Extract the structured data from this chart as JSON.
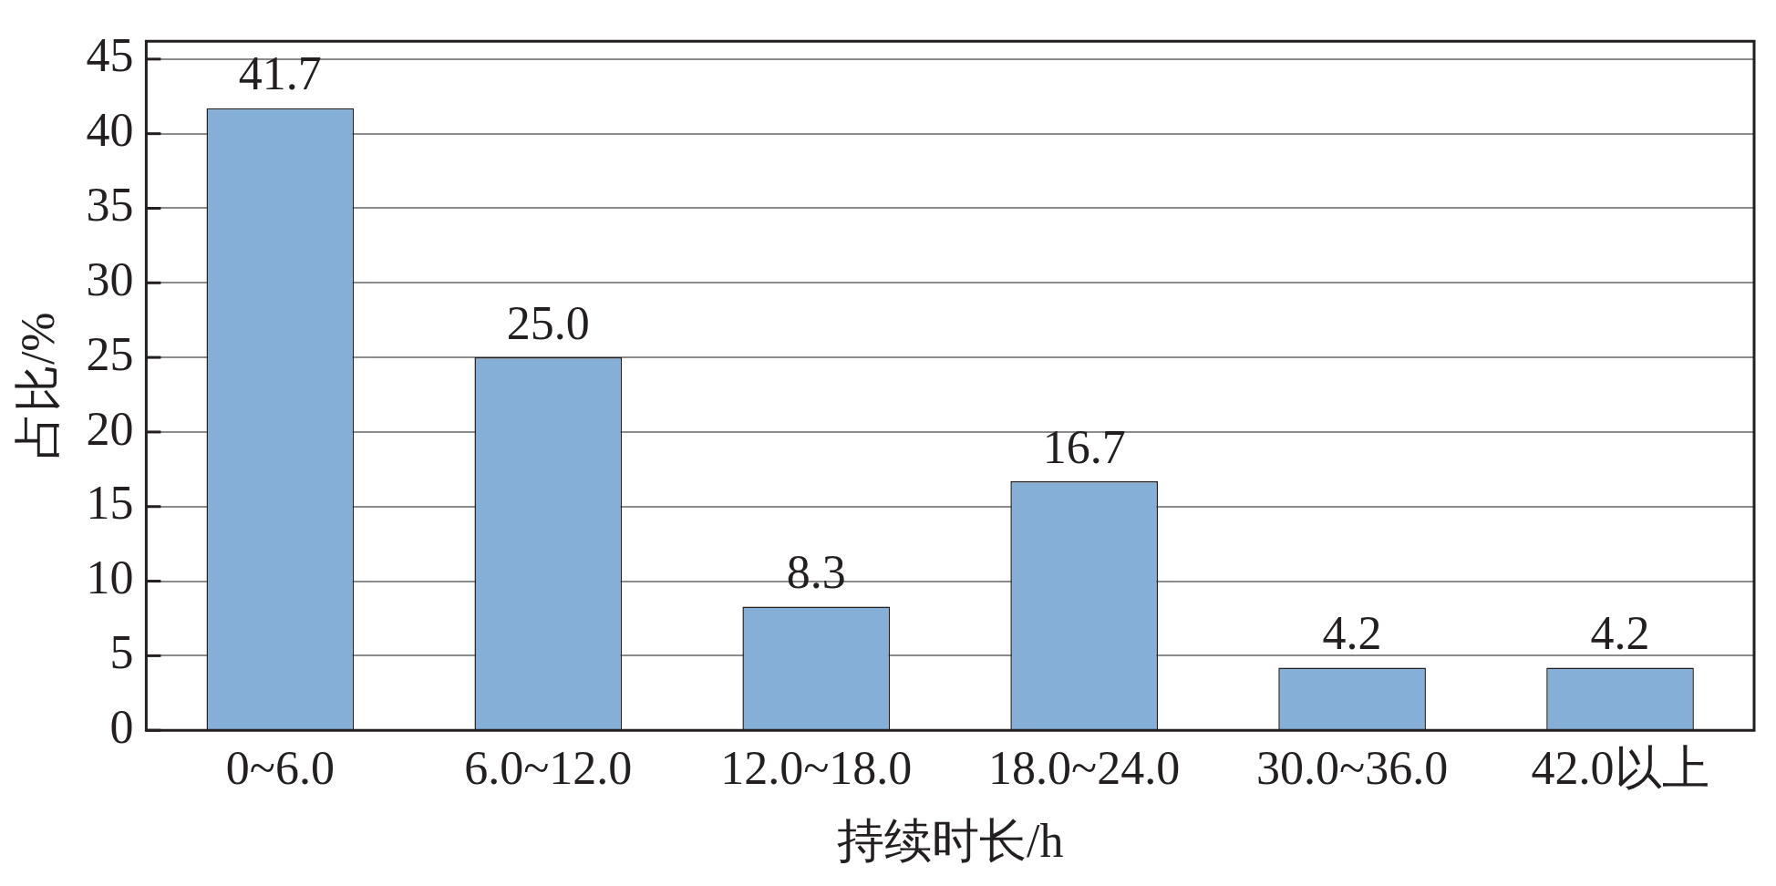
{
  "chart_data": {
    "type": "bar",
    "xlabel": "持续时长/h",
    "ylabel": "占比/%",
    "categories": [
      "0~6.0",
      "6.0~12.0",
      "12.0~18.0",
      "18.0~24.0",
      "30.0~36.0",
      "42.0以上"
    ],
    "values": [
      41.7,
      25.0,
      8.3,
      16.7,
      4.2,
      4.2
    ],
    "value_labels": [
      "41.7",
      "25.0",
      "8.3",
      "16.7",
      "4.2",
      "4.2"
    ],
    "color": "#86afd8",
    "ylim": [
      0,
      46.2
    ],
    "yticks": [
      0,
      5,
      10,
      15,
      20,
      25,
      30,
      35,
      40,
      45
    ],
    "grid": "y",
    "legend": false
  }
}
